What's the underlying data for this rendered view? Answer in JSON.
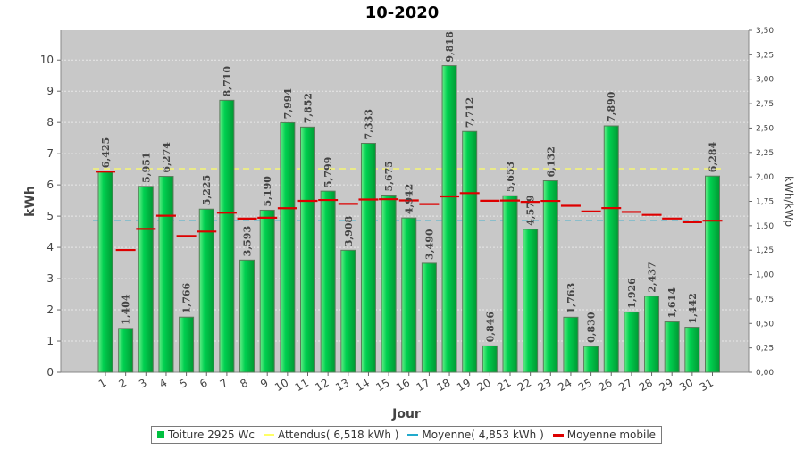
{
  "chart_data": {
    "type": "bar",
    "title": "10-2020",
    "xlabel": "Jour",
    "ylabel": "kWh",
    "y2label": "kWh/kWp",
    "categories": [
      "1",
      "2",
      "3",
      "4",
      "5",
      "6",
      "7",
      "8",
      "9",
      "10",
      "11",
      "12",
      "13",
      "14",
      "15",
      "16",
      "17",
      "18",
      "19",
      "20",
      "21",
      "22",
      "23",
      "24",
      "25",
      "26",
      "27",
      "28",
      "29",
      "30",
      "31"
    ],
    "y_ticks": [
      "0",
      "1",
      "2",
      "3",
      "4",
      "5",
      "6",
      "7",
      "8",
      "9",
      "10"
    ],
    "y2_ticks": [
      "0,00",
      "0,25",
      "0,50",
      "0,75",
      "1,00",
      "1,25",
      "1,50",
      "1,75",
      "2,00",
      "2,25",
      "2,50",
      "2,75",
      "3,00",
      "3,25",
      "3,50"
    ],
    "ylim": [
      0,
      10.95
    ],
    "y2lim": [
      0,
      3.5
    ],
    "grid": true,
    "legend_position": "bottom",
    "series": [
      {
        "name": "Toiture 2925 Wc",
        "kind": "bar",
        "color": "#00c040",
        "values": [
          6.425,
          1.404,
          5.951,
          6.274,
          1.766,
          5.225,
          8.71,
          3.593,
          5.19,
          7.994,
          7.852,
          5.799,
          3.908,
          7.333,
          5.675,
          4.942,
          3.49,
          9.818,
          7.712,
          0.846,
          5.653,
          4.579,
          6.132,
          1.763,
          0.83,
          7.89,
          1.926,
          2.437,
          1.614,
          1.442,
          6.284
        ],
        "labels": [
          "6,425",
          "1,404",
          "5,951",
          "6,274",
          "1,766",
          "5,225",
          "8,710",
          "3,593",
          "5,190",
          "7,994",
          "7,852",
          "5,799",
          "3,908",
          "7,333",
          "5,675",
          "4,942",
          "3,490",
          "9,818",
          "7,712",
          "0,846",
          "5,653",
          "4,579",
          "6,132",
          "1,763",
          "0,830",
          "7,890",
          "1,926",
          "2,437",
          "1,614",
          "1,442",
          "6,284"
        ]
      },
      {
        "name": "Attendus( 6,518 kWh )",
        "kind": "hline",
        "color": "#ffff66",
        "value": 6.518
      },
      {
        "name": "Moyenne( 4,853 kWh )",
        "kind": "hline",
        "color": "#22aacc",
        "value": 4.853
      },
      {
        "name": "Moyenne mobile",
        "kind": "step",
        "color": "#dd0000",
        "values": [
          6.425,
          3.915,
          4.593,
          5.014,
          4.364,
          4.508,
          5.108,
          4.92,
          4.95,
          5.254,
          5.49,
          5.516,
          5.392,
          5.532,
          5.541,
          5.504,
          5.386,
          5.632,
          5.737,
          5.492,
          5.5,
          5.458,
          5.487,
          5.332,
          5.152,
          5.257,
          5.134,
          5.041,
          4.923,
          4.807,
          4.855
        ]
      }
    ]
  }
}
